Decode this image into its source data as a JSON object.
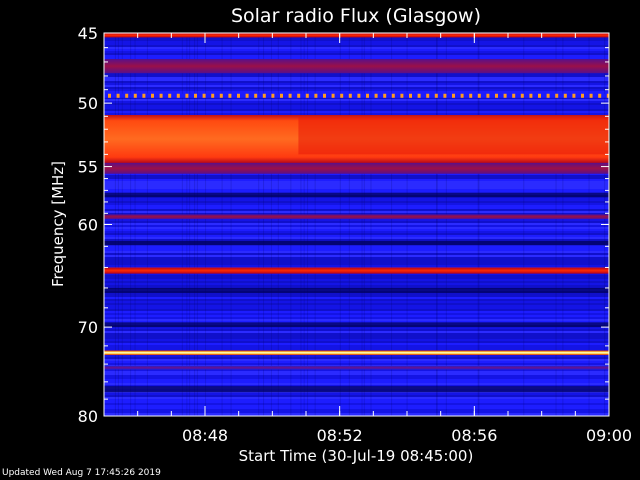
{
  "chart_data": {
    "type": "heatmap",
    "title": "Solar radio Flux (Glasgow)",
    "xlabel": "Start Time (30-Jul-19 08:45:00)",
    "ylabel": "Frequency [MHz]",
    "x_range": [
      "08:45",
      "09:00"
    ],
    "y_range": [
      45,
      80
    ],
    "x_ticks": [
      "08:48",
      "08:52",
      "08:56",
      "09:00"
    ],
    "y_ticks": [
      45,
      50,
      55,
      60,
      70,
      80
    ],
    "y_scale": "log",
    "grid": false,
    "colormap": "blue-red-yellow",
    "background_color": "#1a1aff",
    "bands": [
      {
        "freq_start": 45.0,
        "freq_end": 45.3,
        "level": "high"
      },
      {
        "freq_start": 46.8,
        "freq_end": 47.8,
        "level": "medium"
      },
      {
        "freq_start": 49.3,
        "freq_end": 49.6,
        "level": "medium-dotted"
      },
      {
        "freq_start": 50.9,
        "freq_end": 54.7,
        "level": "very-high"
      },
      {
        "freq_start": 54.7,
        "freq_end": 55.6,
        "level": "medium"
      },
      {
        "freq_start": 59.1,
        "freq_end": 59.5,
        "level": "medium"
      },
      {
        "freq_start": 64.0,
        "freq_end": 64.6,
        "level": "high"
      },
      {
        "freq_start": 72.5,
        "freq_end": 73.0,
        "level": "peak"
      },
      {
        "freq_start": 74.2,
        "freq_end": 74.6,
        "level": "low-medium"
      }
    ]
  },
  "footer": {
    "updated_text": "Updated Wed Aug  7 17:45:26 2019"
  }
}
